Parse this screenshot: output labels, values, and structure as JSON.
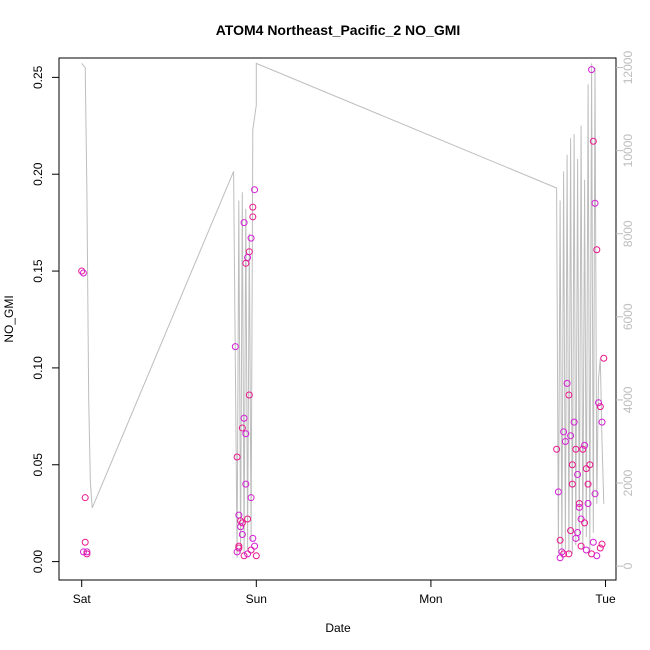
{
  "chart_data": {
    "type": "scatter",
    "title": "ATOM4 Northeast_Pacific_2 NO_GMI",
    "xlabel": "Date",
    "ylabel": "NO_GMI",
    "x_ticks": [
      "Sat",
      "Sun",
      "Mon",
      "Tue"
    ],
    "ylim": [
      0,
      0.25
    ],
    "y_ticks": [
      "0.00",
      "0.05",
      "0.10",
      "0.15",
      "0.20",
      "0.25"
    ],
    "y2lim": [
      0,
      12000
    ],
    "y2_ticks": [
      "0",
      "2000",
      "4000",
      "6000",
      "8000",
      "10000",
      "12000"
    ],
    "grid": false,
    "colors": {
      "points_a": "#e8188c",
      "points_b": "#d41fd4",
      "line": "#bdbdbd",
      "axis": "#000000",
      "axis_right": "#bdbdbd"
    },
    "series": [
      {
        "kind": "points",
        "axis": "left",
        "x": [
          0.0,
          0.01,
          0.02,
          0.01,
          0.02,
          0.03,
          0.03,
          0.88,
          0.89,
          0.9,
          0.91,
          0.92,
          0.9,
          0.93,
          0.92,
          0.94,
          0.95,
          0.94,
          0.96,
          0.97,
          0.98,
          0.99,
          0.98,
          0.97,
          0.96,
          0.95,
          0.94,
          0.93,
          0.92,
          0.91,
          0.9,
          0.89,
          0.93,
          0.95,
          0.97,
          0.99,
          1.0,
          0.98,
          2.72,
          2.73,
          2.74,
          2.75,
          2.76,
          2.78,
          2.79,
          2.8,
          2.81,
          2.82,
          2.83,
          2.84,
          2.85,
          2.86,
          2.87,
          2.88,
          2.89,
          2.9,
          2.91,
          2.92,
          2.93,
          2.94,
          2.95,
          2.96,
          2.97,
          2.98,
          2.99,
          2.77,
          2.8,
          2.83,
          2.86,
          2.89,
          2.92,
          2.95,
          2.98,
          2.74,
          2.79,
          2.84,
          2.88,
          2.93,
          2.97,
          2.76,
          2.81,
          2.85,
          2.9,
          2.94
        ],
        "y": [
          0.15,
          0.149,
          0.033,
          0.005,
          0.01,
          0.005,
          0.004,
          0.111,
          0.054,
          0.024,
          0.021,
          0.014,
          0.008,
          0.074,
          0.069,
          0.04,
          0.022,
          0.066,
          0.086,
          0.033,
          0.178,
          0.192,
          0.183,
          0.167,
          0.16,
          0.157,
          0.154,
          0.175,
          0.02,
          0.018,
          0.007,
          0.005,
          0.003,
          0.004,
          0.006,
          0.008,
          0.003,
          0.012,
          0.058,
          0.036,
          0.011,
          0.005,
          0.004,
          0.092,
          0.086,
          0.065,
          0.04,
          0.072,
          0.058,
          0.045,
          0.03,
          0.022,
          0.058,
          0.06,
          0.048,
          0.03,
          0.05,
          0.254,
          0.217,
          0.185,
          0.161,
          0.082,
          0.08,
          0.072,
          0.105,
          0.062,
          0.016,
          0.012,
          0.008,
          0.006,
          0.004,
          0.003,
          0.009,
          0.002,
          0.004,
          0.015,
          0.02,
          0.01,
          0.007,
          0.067,
          0.05,
          0.028,
          0.04,
          0.035
        ]
      },
      {
        "kind": "line",
        "axis": "right",
        "x": [
          0.0,
          0.0,
          0.02,
          0.03,
          0.04,
          0.05,
          0.06,
          0.87,
          0.89,
          0.9,
          0.91,
          0.92,
          0.93,
          0.94,
          0.95,
          0.96,
          0.97,
          0.98,
          1.0,
          1.0,
          2.72,
          2.73,
          2.74,
          2.75,
          2.76,
          2.77,
          2.78,
          2.79,
          2.8,
          2.81,
          2.82,
          2.83,
          2.84,
          2.85,
          2.86,
          2.87,
          2.88,
          2.89,
          2.9,
          2.91,
          2.92,
          2.93,
          2.94,
          2.95,
          2.96,
          2.97,
          2.98,
          2.99
        ],
        "y": [
          12100,
          12100,
          12000,
          9000,
          4000,
          2000,
          1400,
          9500,
          200,
          8800,
          300,
          9000,
          300,
          8600,
          400,
          8000,
          600,
          10500,
          11100,
          12100,
          9100,
          300,
          8800,
          200,
          9500,
          400,
          9900,
          300,
          10300,
          300,
          10400,
          500,
          9800,
          600,
          10600,
          400,
          9300,
          700,
          11600,
          300,
          12100,
          800,
          12000,
          1500,
          4500,
          5000,
          3000,
          1500
        ],
        "connect_path_hint": "sequential"
      }
    ]
  }
}
